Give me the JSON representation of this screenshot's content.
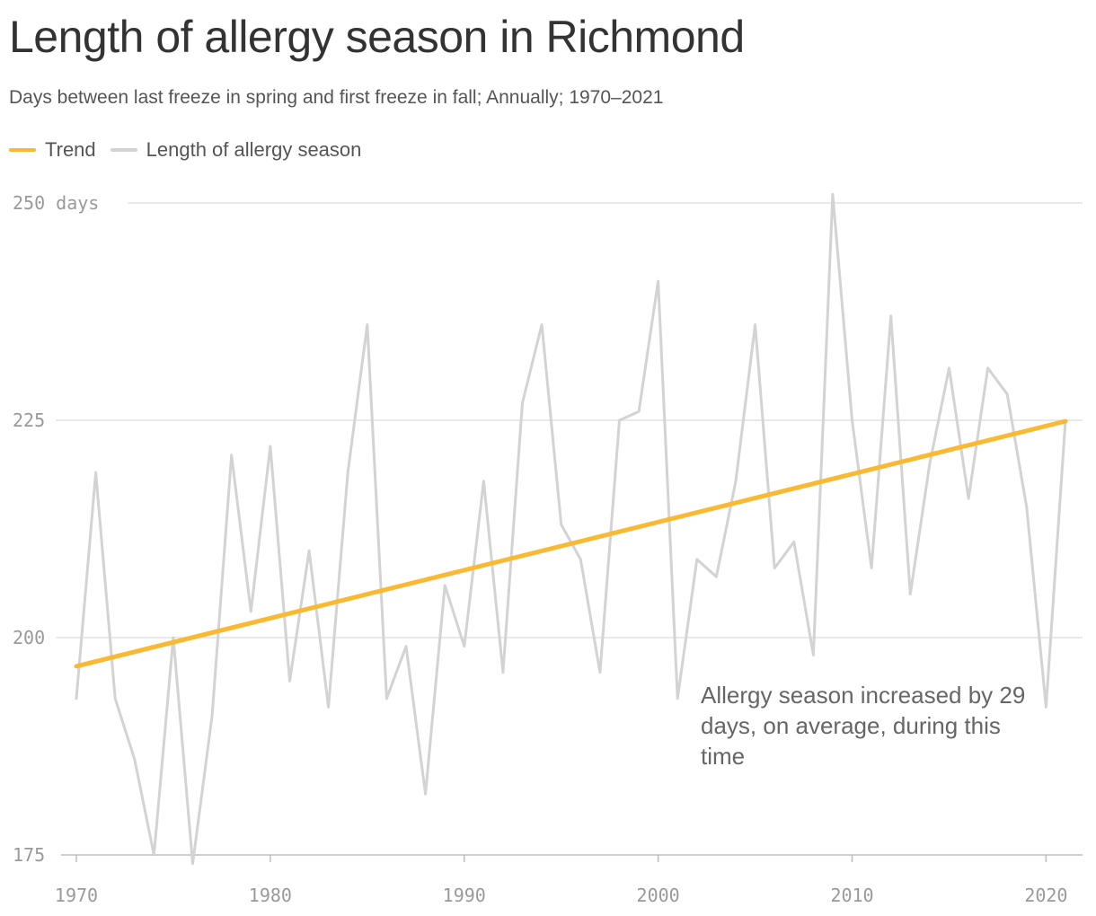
{
  "header": {
    "title": "Length of allergy season in Richmond",
    "subtitle": "Days between last freeze in spring and first freeze in fall; Annually; 1970–2021"
  },
  "legend": [
    {
      "label": "Trend",
      "color": "#f9b932"
    },
    {
      "label": "Length of allergy season",
      "color": "#d3d3d3"
    }
  ],
  "annotation": "Allergy season increased by 29 days, on average, during this time",
  "chart_data": {
    "type": "line",
    "title": "Length of allergy season in Richmond",
    "subtitle": "Days between last freeze in spring and first freeze in fall; Annually; 1970–2021",
    "xlim": [
      1970,
      2021
    ],
    "ylim": [
      175,
      250
    ],
    "y_ticks": [
      {
        "value": 250,
        "label": "250 days"
      },
      {
        "value": 225,
        "label": "225"
      },
      {
        "value": 200,
        "label": "200"
      },
      {
        "value": 175,
        "label": "175"
      }
    ],
    "x_ticks": [
      {
        "value": 1970,
        "label": "1970"
      },
      {
        "value": 1980,
        "label": "1980"
      },
      {
        "value": 1990,
        "label": "1990"
      },
      {
        "value": 2000,
        "label": "2000"
      },
      {
        "value": 2010,
        "label": "2010"
      },
      {
        "value": 2020,
        "label": "2020"
      }
    ],
    "grid": true,
    "legend_position": "top-left",
    "series": [
      {
        "name": "Length of allergy season",
        "color": "#d3d3d3",
        "x": [
          1970,
          1971,
          1972,
          1973,
          1974,
          1975,
          1976,
          1977,
          1978,
          1979,
          1980,
          1981,
          1982,
          1983,
          1984,
          1985,
          1986,
          1987,
          1988,
          1989,
          1990,
          1991,
          1992,
          1993,
          1994,
          1995,
          1996,
          1997,
          1998,
          1999,
          2000,
          2001,
          2002,
          2003,
          2004,
          2005,
          2006,
          2007,
          2008,
          2009,
          2010,
          2011,
          2012,
          2013,
          2014,
          2015,
          2016,
          2017,
          2018,
          2019,
          2020,
          2021
        ],
        "y": [
          193,
          219,
          193,
          186,
          175,
          200,
          174,
          191,
          221,
          203,
          222,
          195,
          210,
          192,
          219,
          236,
          193,
          199,
          182,
          206,
          199,
          218,
          196,
          227,
          236,
          213,
          209,
          196,
          225,
          226,
          241,
          193,
          209,
          207,
          218,
          236,
          208,
          211,
          198,
          251,
          225,
          208,
          237,
          205,
          220,
          231,
          216,
          231,
          228,
          215,
          192,
          225
        ]
      },
      {
        "name": "Trend",
        "color": "#f9b932",
        "x": [
          1970,
          2021
        ],
        "y": [
          196.7,
          224.9
        ]
      }
    ]
  }
}
